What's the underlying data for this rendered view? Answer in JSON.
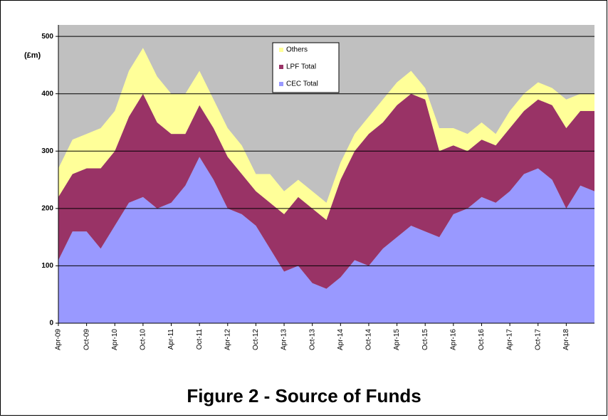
{
  "chart_data": {
    "type": "stacked-area",
    "title": "Figure 2 - Source of Funds",
    "y_label": "(£m)",
    "categories": [
      "Apr-09",
      null,
      "Oct-09",
      null,
      "Apr-10",
      null,
      "Oct-10",
      null,
      "Apr-11",
      null,
      "Oct-11",
      null,
      "Apr-12",
      null,
      "Oct-12",
      null,
      "Apr-13",
      null,
      "Oct-13",
      null,
      "Apr-14",
      null,
      "Oct-14",
      null,
      "Apr-15",
      null,
      "Oct-15",
      null,
      "Apr-16",
      null,
      "Oct-16",
      null,
      "Apr-17",
      null,
      "Oct-17",
      null,
      "Apr-18",
      null,
      null
    ],
    "series": [
      {
        "name": "CEC Total",
        "color": "#9999ff",
        "values": [
          110,
          160,
          160,
          130,
          170,
          210,
          220,
          200,
          210,
          240,
          290,
          250,
          200,
          190,
          170,
          130,
          90,
          100,
          70,
          60,
          80,
          110,
          100,
          130,
          150,
          170,
          160,
          150,
          190,
          200,
          220,
          210,
          230,
          260,
          270,
          250,
          200,
          240,
          230
        ]
      },
      {
        "name": "LPF Total",
        "color": "#993366",
        "values": [
          110,
          100,
          110,
          140,
          130,
          150,
          180,
          150,
          120,
          90,
          90,
          90,
          90,
          70,
          60,
          80,
          100,
          120,
          130,
          120,
          170,
          190,
          230,
          220,
          230,
          230,
          230,
          150,
          120,
          100,
          100,
          100,
          110,
          110,
          120,
          130,
          140,
          130,
          140
        ]
      },
      {
        "name": "Others",
        "color": "#ffff99",
        "values": [
          50,
          60,
          60,
          70,
          70,
          80,
          80,
          80,
          70,
          70,
          60,
          50,
          50,
          50,
          30,
          50,
          40,
          30,
          30,
          30,
          30,
          30,
          30,
          40,
          40,
          40,
          20,
          40,
          30,
          30,
          30,
          20,
          30,
          30,
          30,
          30,
          50,
          30,
          30
        ]
      }
    ],
    "ylim": [
      0,
      520
    ],
    "yticks": [
      0,
      100,
      200,
      300,
      400,
      500
    ],
    "grid": true
  }
}
